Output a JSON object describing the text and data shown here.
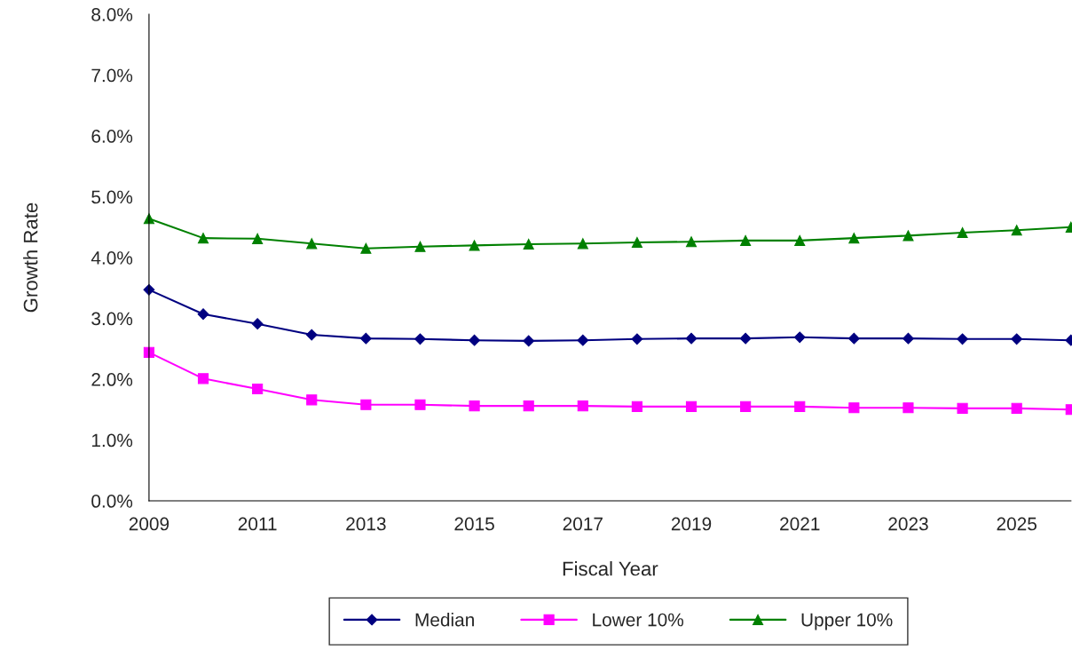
{
  "chart_data": {
    "type": "line",
    "xlabel": "Fiscal Year",
    "ylabel": "Growth Rate",
    "x": [
      2009,
      2010,
      2011,
      2012,
      2013,
      2014,
      2015,
      2016,
      2017,
      2018,
      2019,
      2020,
      2021,
      2022,
      2023,
      2024,
      2025,
      2026
    ],
    "series": [
      {
        "name": "Median",
        "color": "#000080",
        "marker": "diamond",
        "values": [
          3.47,
          3.07,
          2.91,
          2.73,
          2.67,
          2.66,
          2.64,
          2.63,
          2.64,
          2.66,
          2.67,
          2.67,
          2.69,
          2.67,
          2.67,
          2.66,
          2.66,
          2.64
        ]
      },
      {
        "name": "Lower 10%",
        "color": "#ff00ff",
        "marker": "square",
        "values": [
          2.44,
          2.01,
          1.84,
          1.66,
          1.58,
          1.58,
          1.56,
          1.56,
          1.56,
          1.55,
          1.55,
          1.55,
          1.55,
          1.53,
          1.53,
          1.52,
          1.52,
          1.5
        ]
      },
      {
        "name": "Upper 10%",
        "color": "#008000",
        "marker": "triangle",
        "values": [
          4.64,
          4.32,
          4.31,
          4.23,
          4.15,
          4.18,
          4.2,
          4.22,
          4.23,
          4.25,
          4.26,
          4.28,
          4.28,
          4.32,
          4.36,
          4.41,
          4.45,
          4.5
        ]
      }
    ],
    "xlim": [
      2009,
      2026
    ],
    "xticks": [
      2009,
      2011,
      2013,
      2015,
      2017,
      2019,
      2021,
      2023,
      2025
    ],
    "ylim": [
      0,
      8
    ],
    "yticks": [
      {
        "value": 0,
        "label": "0.0%"
      },
      {
        "value": 1,
        "label": "1.0%"
      },
      {
        "value": 2,
        "label": "2.0%"
      },
      {
        "value": 3,
        "label": "3.0%"
      },
      {
        "value": 4,
        "label": "4.0%"
      },
      {
        "value": 5,
        "label": "5.0%"
      },
      {
        "value": 6,
        "label": "6.0%"
      },
      {
        "value": 7,
        "label": "7.0%"
      },
      {
        "value": 8,
        "label": "8.0%"
      }
    ],
    "grid": false,
    "legend": "bottom",
    "line_style": "solid"
  }
}
